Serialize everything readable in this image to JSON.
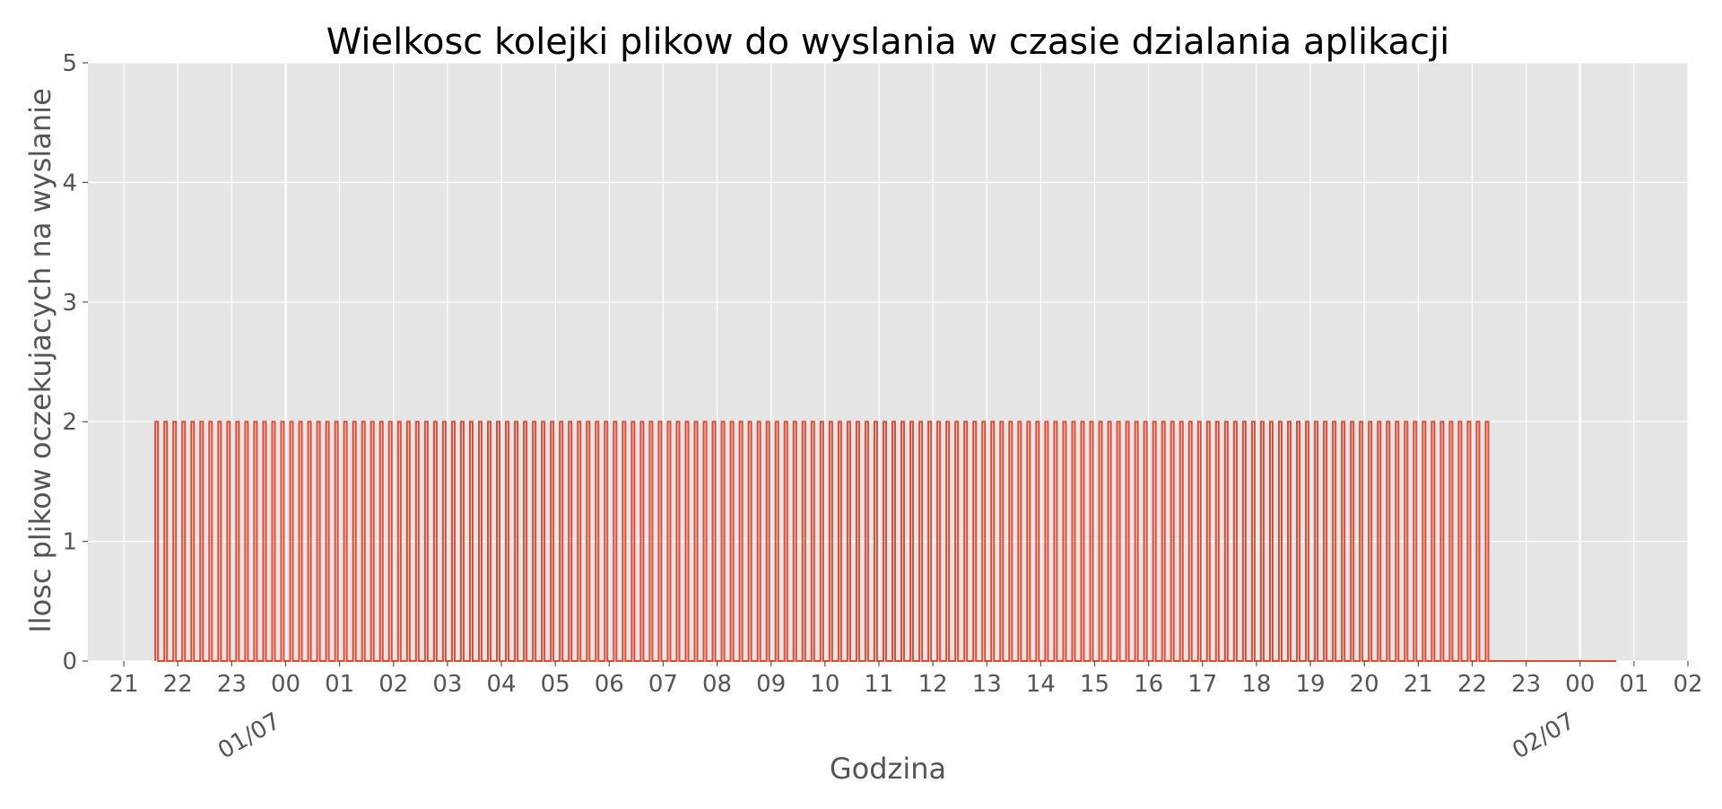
{
  "chart_data": {
    "type": "line",
    "title": "Wielkosc kolejki plikow do wyslania w czasie dzialania aplikacji",
    "xlabel": "Godzina",
    "ylabel": "Ilosc plikow oczekujacych na wyslanie",
    "ylim": [
      0,
      5
    ],
    "yticks": [
      "0",
      "1",
      "2",
      "3",
      "4",
      "5"
    ],
    "xlim": [
      "2023-06-30 20:20",
      "2023-07-02 02:00"
    ],
    "xticks": [
      {
        "t": "2023-06-30 21:00",
        "label": "21"
      },
      {
        "t": "2023-06-30 22:00",
        "label": "22"
      },
      {
        "t": "2023-06-30 23:00",
        "label": "23"
      },
      {
        "t": "2023-07-01 00:00",
        "label": "00"
      },
      {
        "t": "2023-07-01 01:00",
        "label": "01"
      },
      {
        "t": "2023-07-01 02:00",
        "label": "02"
      },
      {
        "t": "2023-07-01 03:00",
        "label": "03"
      },
      {
        "t": "2023-07-01 04:00",
        "label": "04"
      },
      {
        "t": "2023-07-01 05:00",
        "label": "05"
      },
      {
        "t": "2023-07-01 06:00",
        "label": "06"
      },
      {
        "t": "2023-07-01 07:00",
        "label": "07"
      },
      {
        "t": "2023-07-01 08:00",
        "label": "08"
      },
      {
        "t": "2023-07-01 09:00",
        "label": "09"
      },
      {
        "t": "2023-07-01 10:00",
        "label": "10"
      },
      {
        "t": "2023-07-01 11:00",
        "label": "11"
      },
      {
        "t": "2023-07-01 12:00",
        "label": "12"
      },
      {
        "t": "2023-07-01 13:00",
        "label": "13"
      },
      {
        "t": "2023-07-01 14:00",
        "label": "14"
      },
      {
        "t": "2023-07-01 15:00",
        "label": "15"
      },
      {
        "t": "2023-07-01 16:00",
        "label": "16"
      },
      {
        "t": "2023-07-01 17:00",
        "label": "17"
      },
      {
        "t": "2023-07-01 18:00",
        "label": "18"
      },
      {
        "t": "2023-07-01 19:00",
        "label": "19"
      },
      {
        "t": "2023-07-01 20:00",
        "label": "20"
      },
      {
        "t": "2023-07-01 21:00",
        "label": "21"
      },
      {
        "t": "2023-07-01 22:00",
        "label": "22"
      },
      {
        "t": "2023-07-01 23:00",
        "label": "23"
      },
      {
        "t": "2023-07-02 00:00",
        "label": "00"
      },
      {
        "t": "2023-07-02 01:00",
        "label": "01"
      },
      {
        "t": "2023-07-02 02:00",
        "label": "02"
      }
    ],
    "date_labels": [
      {
        "t": "2023-07-01 00:00",
        "label": "01/07"
      },
      {
        "t": "2023-07-02 00:00",
        "label": "02/07"
      }
    ],
    "grid": true,
    "legend": "none",
    "series": [
      {
        "color": "#e24a33",
        "pattern": "square pulses between 0 and 2 files, roughly every 10 minutes",
        "start": "2023-06-30 21:35",
        "end": "2023-07-01 22:20",
        "pulse_period_minutes": 10,
        "pulse_value": 2,
        "baseline_value": 0,
        "tail_end": "2023-07-02 00:40",
        "tail_value": 0
      }
    ],
    "background_color": "#e5e5e5",
    "grid_color": "#ffffff"
  }
}
